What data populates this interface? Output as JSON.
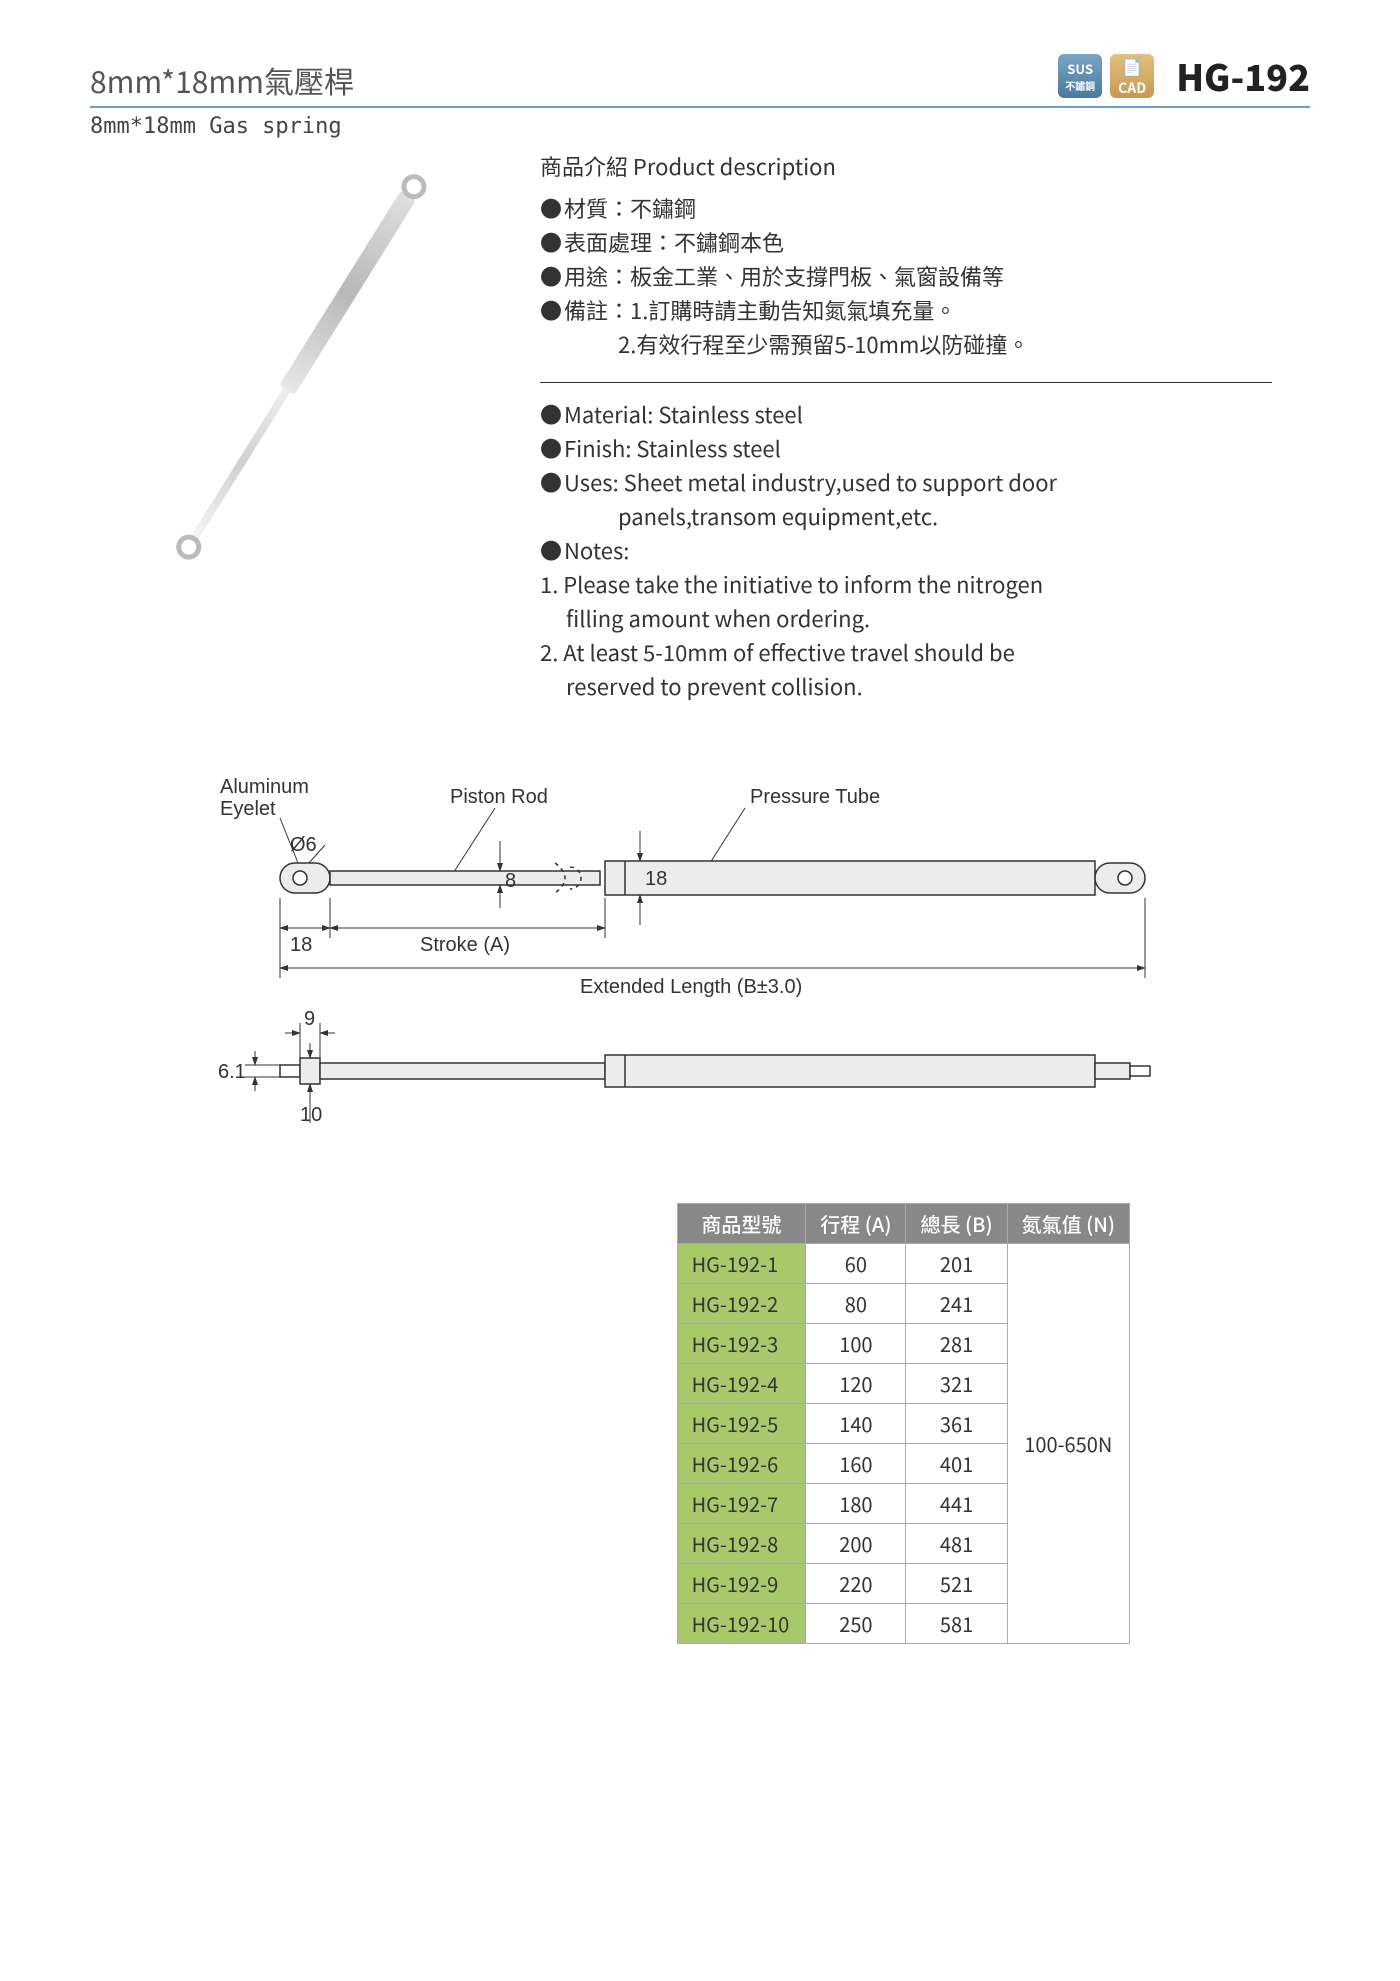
{
  "header": {
    "title_cn": "8mm*18mm氣壓桿",
    "title_en": "8mm*18mm Gas spring",
    "badges": {
      "sus_top": "SUS",
      "sus_sub": "不鏽鋼",
      "cad": "CAD"
    },
    "product_code": "HG-192"
  },
  "description": {
    "heading": "商品介紹 Product description",
    "cn": {
      "material": "材質：不鏽鋼",
      "finish": "表面處理：不鏽鋼本色",
      "uses": "用途：板金工業、用於支撐門板、氣窗設備等",
      "notes_lead": "備註：1.訂購時請主動告知氮氣填充量。",
      "notes_2": "2.有效行程至少需預留5-10mm以防碰撞。"
    },
    "en": {
      "material": "Material: Stainless steel",
      "finish": "Finish: Stainless steel",
      "uses_l1": "Uses: Sheet metal industry,used to support door",
      "uses_l2": "panels,transom equipment,etc.",
      "notes_lead": "Notes:",
      "note1_l1": "1. Please take the initiative to inform the nitrogen",
      "note1_l2": "filling amount when ordering.",
      "note2_l1": "2. At least 5-10mm of effective travel should be",
      "note2_l2": "reserved to prevent collision."
    }
  },
  "diagram": {
    "labels": {
      "aluminum_eyelet_l1": "Aluminum",
      "aluminum_eyelet_l2": "Eyelet",
      "piston_rod": "Piston Rod",
      "pressure_tube": "Pressure Tube",
      "stroke": "Stroke (A)",
      "extended_length": "Extended Length (B±3.0)"
    },
    "dims": {
      "hole_dia": "Ø6",
      "rod_dia": "8",
      "tube_dia": "18",
      "eyelet_flat": "18",
      "side_w": "9",
      "side_h": "6.1",
      "side_th": "10"
    },
    "colors": {
      "fill": "#ececec",
      "stroke": "#333333",
      "bg": "#ffffff"
    }
  },
  "table": {
    "headers": {
      "model": "商品型號",
      "stroke": "行程 (A)",
      "length": "總長 (B)",
      "nitrogen": "氮氣值 (N)"
    },
    "nitrogen_value": "100-650N",
    "rows": [
      {
        "model": "HG-192-1",
        "a": "60",
        "b": "201"
      },
      {
        "model": "HG-192-2",
        "a": "80",
        "b": "241"
      },
      {
        "model": "HG-192-3",
        "a": "100",
        "b": "281"
      },
      {
        "model": "HG-192-4",
        "a": "120",
        "b": "321"
      },
      {
        "model": "HG-192-5",
        "a": "140",
        "b": "361"
      },
      {
        "model": "HG-192-6",
        "a": "160",
        "b": "401"
      },
      {
        "model": "HG-192-7",
        "a": "180",
        "b": "441"
      },
      {
        "model": "HG-192-8",
        "a": "200",
        "b": "481"
      },
      {
        "model": "HG-192-9",
        "a": "220",
        "b": "521"
      },
      {
        "model": "HG-192-10",
        "a": "250",
        "b": "581"
      }
    ],
    "colors": {
      "header_bg": "#888888",
      "model_bg": "#a7c96a",
      "border": "#aaaaaa"
    }
  }
}
